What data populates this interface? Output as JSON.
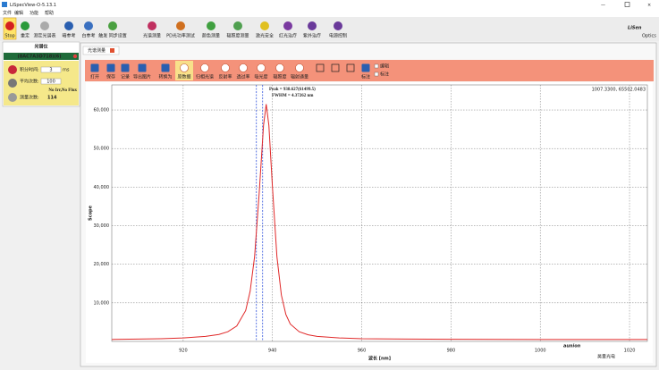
{
  "window": {
    "title": "LiSpecView-O-5.13.1"
  },
  "menu": [
    "文件",
    "编辑",
    "功能",
    "帮助"
  ],
  "toolbar": [
    "Stop",
    "重定",
    "测定光谱表",
    "暗参考",
    "白参考",
    "触发 同步设置",
    "光谱测量",
    "PD光功率测试",
    "颜色测量",
    "辐照度测量",
    "激光安全",
    "红光治疗",
    "紫外治疗",
    "电源控制"
  ],
  "logo": {
    "name": "LiSen",
    "sub": "Optics"
  },
  "device_panel": {
    "title": "光谱仪",
    "device": "(8AC7A3D718)(6)",
    "integration_label": "积分时间:",
    "integration_value": "3",
    "integration_unit": "ms",
    "average_label": "平均次数:",
    "average_value": "100",
    "status": "No Irr,No Flux",
    "count_label": "测量次数:",
    "count_value": "114"
  },
  "tab": "光谱测量",
  "chart_toolbar": [
    "打开",
    "保存",
    "记录",
    "导出图片",
    "转换为",
    "原数据",
    "归相光谱",
    "反射率",
    "透过率",
    "吸光度",
    "辐照度",
    "辐射通量",
    "标注"
  ],
  "checkboxes": [
    "编辑",
    "标注"
  ],
  "chart_data": {
    "type": "line",
    "x_label": "波长 [nm]",
    "y_label": "Scope",
    "cursor": "1007.3300, 65502.0483",
    "annotations": [
      "Peak = 938.627(61499.5)",
      "FWHM = 4.37262 nm"
    ],
    "x": [
      904,
      910,
      915,
      920,
      925,
      928,
      930,
      932,
      934,
      935,
      936,
      937,
      938,
      938.6,
      939.2,
      940,
      941,
      942,
      943,
      944,
      946,
      948,
      950,
      955,
      960,
      970,
      980,
      1000,
      1024
    ],
    "series": [
      {
        "color": "#e02828",
        "values": [
          500,
          600,
          700,
          900,
          1300,
          1800,
          2500,
          4000,
          8000,
          13000,
          22000,
          38000,
          56000,
          61500,
          56000,
          40000,
          22000,
          12000,
          7000,
          4500,
          2500,
          1700,
          1300,
          900,
          700,
          600,
          550,
          500,
          500
        ]
      }
    ],
    "marker_lines": {
      "values": [
        936.4,
        937.8
      ],
      "color": "#3355dd"
    },
    "xlim": [
      904,
      1024
    ],
    "ylim": [
      0,
      66500
    ],
    "xticks": [
      920,
      940,
      960,
      980,
      1000,
      1020
    ],
    "yticks": [
      {
        "value": 10000,
        "label": "10,000"
      },
      {
        "value": 20000,
        "label": "20,000"
      },
      {
        "value": 30000,
        "label": "30,000"
      },
      {
        "value": 40000,
        "label": "40,000"
      },
      {
        "value": 50000,
        "label": "50,000"
      },
      {
        "value": 60000,
        "label": "60,000"
      }
    ],
    "grid": true
  },
  "watermark": {
    "brand": "aunion",
    "sub": "昊量光电"
  }
}
